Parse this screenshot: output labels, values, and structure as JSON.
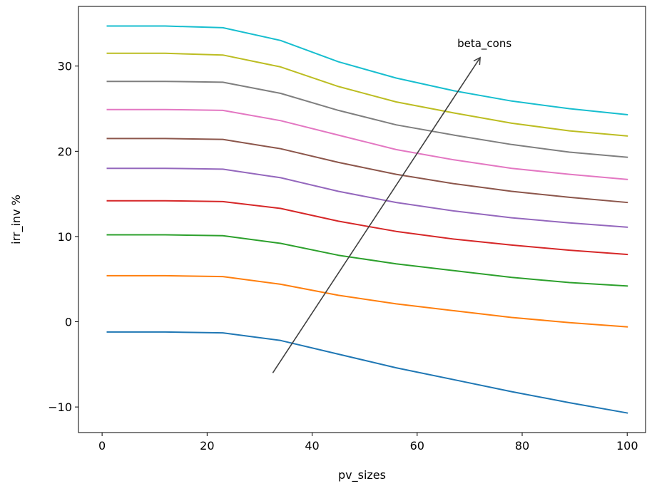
{
  "chart_data": {
    "type": "line",
    "title": "",
    "xlabel": "pv_sizes",
    "ylabel": "irr_inv %",
    "xlim": [
      -4.5,
      103.5
    ],
    "ylim": [
      -13,
      37
    ],
    "xticks": [
      0,
      20,
      40,
      60,
      80,
      100
    ],
    "yticks": [
      -10,
      0,
      10,
      20,
      30
    ],
    "grid": false,
    "x": [
      1,
      12,
      23,
      34,
      45,
      56,
      67,
      78,
      89,
      100
    ],
    "series": [
      {
        "color": "#1f77b4",
        "values": [
          -1.2,
          -1.2,
          -1.3,
          -2.2,
          -3.8,
          -5.4,
          -6.8,
          -8.2,
          -9.5,
          -10.7
        ]
      },
      {
        "color": "#ff7f0e",
        "values": [
          5.4,
          5.4,
          5.3,
          4.4,
          3.1,
          2.1,
          1.3,
          0.5,
          -0.1,
          -0.6
        ]
      },
      {
        "color": "#2ca02c",
        "values": [
          10.2,
          10.2,
          10.1,
          9.2,
          7.8,
          6.8,
          6.0,
          5.2,
          4.6,
          4.2
        ]
      },
      {
        "color": "#d62728",
        "values": [
          14.2,
          14.2,
          14.1,
          13.3,
          11.8,
          10.6,
          9.7,
          9.0,
          8.4,
          7.9
        ]
      },
      {
        "color": "#9467bd",
        "values": [
          18.0,
          18.0,
          17.9,
          16.9,
          15.3,
          14.0,
          13.0,
          12.2,
          11.6,
          11.1
        ]
      },
      {
        "color": "#8c564b",
        "values": [
          21.5,
          21.5,
          21.4,
          20.3,
          18.7,
          17.3,
          16.2,
          15.3,
          14.6,
          14.0
        ]
      },
      {
        "color": "#e377c2",
        "values": [
          24.9,
          24.9,
          24.8,
          23.6,
          21.9,
          20.2,
          19.0,
          18.0,
          17.3,
          16.7
        ]
      },
      {
        "color": "#7f7f7f",
        "values": [
          28.2,
          28.2,
          28.1,
          26.8,
          24.8,
          23.1,
          21.9,
          20.8,
          19.9,
          19.3
        ]
      },
      {
        "color": "#bcbd22",
        "values": [
          31.5,
          31.5,
          31.3,
          29.9,
          27.6,
          25.8,
          24.5,
          23.3,
          22.4,
          21.8
        ]
      },
      {
        "color": "#17becf",
        "values": [
          34.7,
          34.7,
          34.5,
          33.0,
          30.5,
          28.6,
          27.1,
          25.9,
          25.0,
          24.3
        ]
      }
    ],
    "annotation": {
      "text": "beta_cons",
      "arrow_start": [
        32.5,
        -6.0
      ],
      "arrow_end": [
        72.0,
        31.0
      ],
      "color": "#404040"
    }
  }
}
